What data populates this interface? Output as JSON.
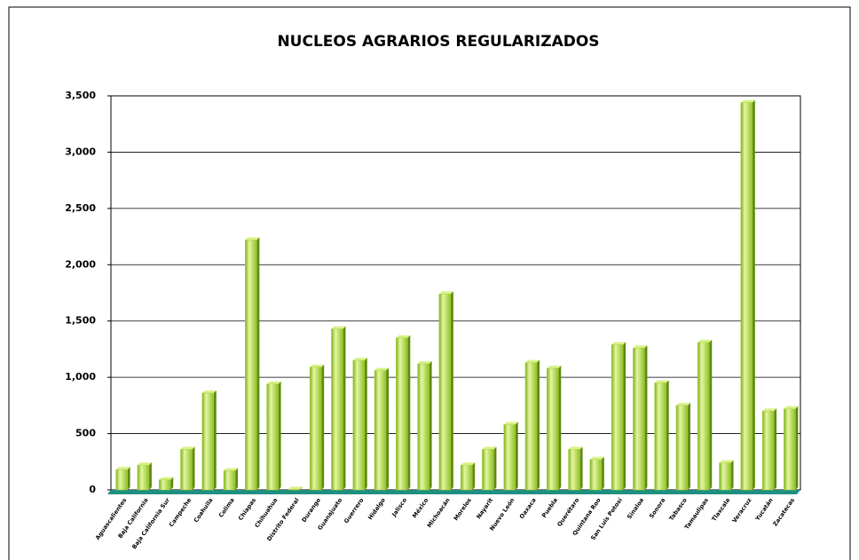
{
  "chart_data": {
    "type": "bar",
    "title": "NUCLEOS  AGRARIOS REGULARIZADOS",
    "categories": [
      "Aguascalientes",
      "Baja California",
      "Baja California Sur",
      "Campeche",
      "Coahuila",
      "Colima",
      "Chiapas",
      "Chihuahua",
      "Distrito Federal",
      "Durango",
      "Guanajuato",
      "Guerrero",
      "Hidalgo",
      "Jalisco",
      "México",
      "Michoacán",
      "Morelos",
      "Nayarit",
      "Nuevo León",
      "Oaxaca",
      "Puebla",
      "Querétaro",
      "Quintana Roo",
      "San Luis Potosí",
      "Sinaloa",
      "Sonora",
      "Tabasco",
      "Tamaulipas",
      "Tlaxcala",
      "Veracruz",
      "Yucatán",
      "Zacatecas"
    ],
    "values": [
      180,
      220,
      90,
      360,
      860,
      170,
      2220,
      940,
      5,
      1090,
      1430,
      1150,
      1060,
      1350,
      1120,
      1740,
      220,
      360,
      580,
      1130,
      1080,
      360,
      270,
      1290,
      1260,
      950,
      750,
      1310,
      240,
      3440,
      700,
      720
    ],
    "color": "#a8d53c",
    "ylim": [
      0,
      3500
    ],
    "yticks": [
      0,
      500,
      {
        "value": 1000,
        "label": "1,000"
      },
      {
        "value": 1500,
        "label": "1,500"
      },
      {
        "value": 2000,
        "label": "2,000"
      },
      {
        "value": 2500,
        "label": "2,500"
      },
      {
        "value": 3000,
        "label": "3,000"
      },
      {
        "value": 3500,
        "label": "3,500"
      }
    ],
    "grid": true
  }
}
